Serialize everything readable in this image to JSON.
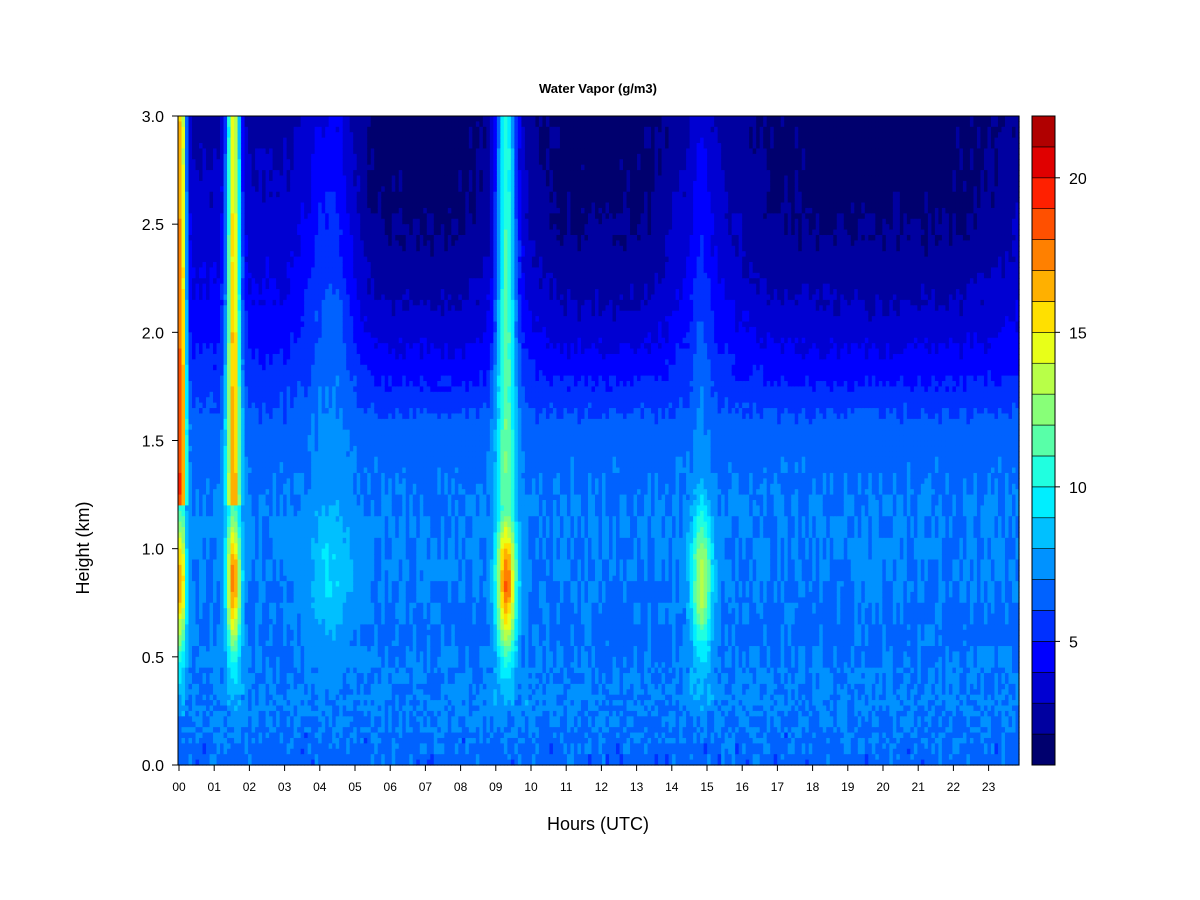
{
  "chart_data": {
    "type": "heatmap",
    "title": "Water Vapor (g/m3)",
    "xlabel": "Hours (UTC)",
    "ylabel": "Height (km)",
    "xlim": [
      0,
      23.85
    ],
    "ylim": [
      0.0,
      3.0
    ],
    "x_ticks": [
      "00",
      "01",
      "02",
      "03",
      "04",
      "05",
      "06",
      "07",
      "08",
      "09",
      "10",
      "11",
      "12",
      "13",
      "14",
      "15",
      "16",
      "17",
      "18",
      "19",
      "20",
      "21",
      "22",
      "23"
    ],
    "y_ticks": [
      "0.0",
      "0.5",
      "1.0",
      "1.5",
      "2.0",
      "2.5",
      "3.0"
    ],
    "colorbar": {
      "range": [
        1,
        22
      ],
      "levels": [
        1,
        2,
        3,
        4,
        5,
        6,
        7,
        8,
        9,
        10,
        11,
        12,
        13,
        14,
        15,
        16,
        17,
        18,
        19,
        20,
        21,
        22
      ],
      "tick_labels": [
        "5",
        "10",
        "15",
        "20"
      ],
      "tick_values": [
        5,
        10,
        15,
        20
      ],
      "colors": [
        "#00006e",
        "#0000a0",
        "#0000d2",
        "#0000ff",
        "#0030ff",
        "#0062ff",
        "#0092ff",
        "#00c0ff",
        "#00eeff",
        "#20ffe0",
        "#58ffa8",
        "#88ff78",
        "#b8ff48",
        "#e8ff18",
        "#ffe000",
        "#ffb000",
        "#ff8000",
        "#ff5000",
        "#ff2000",
        "#e00000",
        "#b00000",
        "#800000"
      ]
    },
    "base_profile": {
      "heights_km": [
        0.0,
        0.3,
        0.6,
        0.9,
        1.2,
        1.5,
        1.8,
        2.0,
        2.3,
        2.6,
        3.0
      ],
      "values": [
        6.5,
        7.2,
        6.8,
        7.0,
        7.0,
        6.6,
        5.4,
        4.6,
        3.8,
        3.2,
        2.5
      ]
    },
    "plumes": [
      {
        "hour": 0.05,
        "width_h": 0.15,
        "core_value": 17.0,
        "core_height_km": 0.85,
        "top_value": 19.5,
        "upper_decay_km": 9.0
      },
      {
        "hour": 1.55,
        "width_h": 0.2,
        "core_value": 17.5,
        "core_height_km": 0.85,
        "top_value": 17.0,
        "upper_decay_km": 9.0
      },
      {
        "hour": 9.3,
        "width_h": 0.28,
        "core_value": 18.0,
        "core_height_km": 0.85,
        "top_value": 12.0,
        "upper_decay_km": 9.0
      },
      {
        "hour": 14.85,
        "width_h": 0.3,
        "core_value": 13.5,
        "core_height_km": 0.85,
        "top_value": 7.5,
        "upper_decay_km": 1.2
      },
      {
        "hour": 4.3,
        "width_h": 0.7,
        "core_value": 9.0,
        "core_height_km": 0.9,
        "top_value": 7.5,
        "upper_decay_km": 1.5
      }
    ],
    "dry_upper_regions": [
      {
        "hour_start": 5.0,
        "hour_end": 8.8,
        "value_top": 1.5
      },
      {
        "hour_start": 10.2,
        "hour_end": 13.8,
        "value_top": 1.5
      },
      {
        "hour_start": 15.8,
        "hour_end": 23.85,
        "value_top": 1.5
      }
    ]
  }
}
